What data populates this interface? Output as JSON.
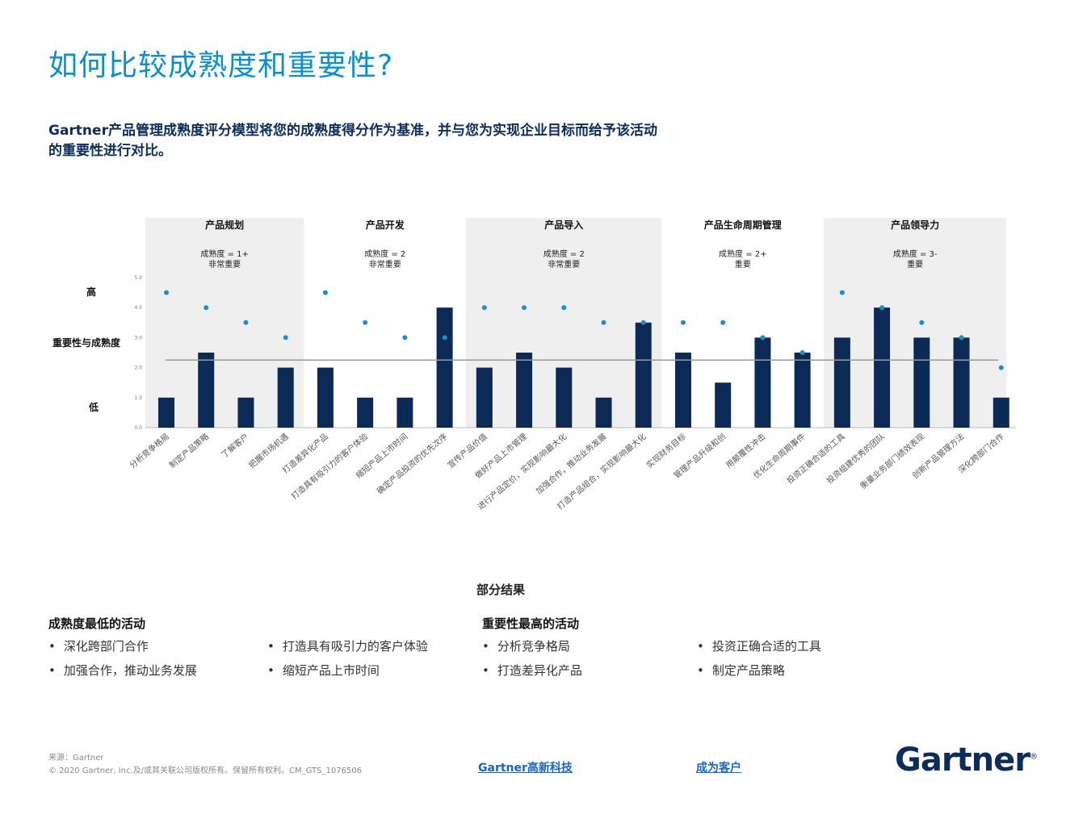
{
  "title": "如何比较成熟度和重要性?",
  "intro": "Gartner产品管理成熟度评分模型将您的成熟度得分作为基准，并与您为实现企业目标而给予该活动的重要性进行对比。",
  "chart_data": {
    "type": "bar",
    "ylabel": "重要性与成熟度",
    "ylim": [
      0,
      5
    ],
    "yticks": [
      "0.0",
      "1.0",
      "2.0",
      "3.0",
      "4.0",
      "5.0"
    ],
    "y_words": {
      "high": "高",
      "low": "低"
    },
    "baseline": 2.25,
    "categories": [
      "分析竞争格局",
      "制定产品策略",
      "了解客户",
      "把握市场机遇",
      "打造差异化产品",
      "打造具有吸引力的客户体验",
      "缩短产品上市时间",
      "确定产品投资的优先次序",
      "宣传产品价值",
      "做好产品上市管理",
      "进行产品定价，实现影响最大化",
      "加强合作，推动业务发展",
      "打造产品组合，实现影响最大化",
      "实现财务目标",
      "管理产品升级和创",
      "用颠覆性冲击",
      "优化生命周期事件",
      "投资正确合适的工具",
      "投资组建优秀的团队",
      "衡量业务部门绩效表现",
      "创新产品管理方法",
      "深化跨部门合作"
    ],
    "series": [
      {
        "role": "bars",
        "values": [
          1,
          2.5,
          1,
          2,
          2,
          1,
          1,
          4,
          2,
          2.5,
          2,
          1,
          3.5,
          2.5,
          1.5,
          3,
          2.5,
          3,
          4,
          3,
          3,
          1
        ]
      },
      {
        "role": "dots",
        "values": [
          4.5,
          4,
          3.5,
          3,
          4.5,
          3.5,
          3,
          3,
          4,
          4,
          4,
          3.5,
          3.5,
          3.5,
          3.5,
          3,
          2.5,
          4.5,
          4,
          3.5,
          3,
          2
        ]
      }
    ],
    "groups": [
      {
        "name": "产品规划",
        "line1": "成熟度 = 1+",
        "line2": "非常重要",
        "start": 0,
        "end": 3,
        "shaded": true
      },
      {
        "name": "产品开发",
        "line1": "成熟度 = 2",
        "line2": "非常重要",
        "start": 4,
        "end": 7,
        "shaded": false
      },
      {
        "name": "产品导入",
        "line1": "成熟度 = 2",
        "line2": "非常重要",
        "start": 8,
        "end": 12,
        "shaded": true
      },
      {
        "name": "产品生命周期管理",
        "line1": "成熟度 = 2+",
        "line2": "重要",
        "start": 13,
        "end": 16,
        "shaded": false
      },
      {
        "name": "产品领导力",
        "line1": "成熟度 = 3-",
        "line2": "重要",
        "start": 17,
        "end": 21,
        "shaded": true
      }
    ],
    "colors": {
      "bar": "#0b2a55",
      "dot": "#1b8fc9",
      "shade": "#efefef",
      "baseline": "#9a9a9a"
    }
  },
  "results": {
    "heading": "部分结果",
    "lowest": {
      "title": "成熟度最低的活动",
      "col1": [
        "深化跨部门合作",
        "加强合作，推动业务发展"
      ],
      "col2": [
        "打造具有吸引力的客户体验",
        "缩短产品上市时间"
      ]
    },
    "highest": {
      "title": "重要性最高的活动",
      "col1": [
        "分析竞争格局",
        "打造差异化产品"
      ],
      "col2": [
        "投资正确合适的工具",
        "制定产品策略"
      ]
    }
  },
  "footer": {
    "source": "来源：Gartner",
    "copyright": "© 2020 Gartner, Inc.及/或其关联公司版权所有。保留所有权利。CM_GTS_1076506",
    "link1": "Gartner高新科技",
    "link2": "成为客户",
    "logo": "Gartner",
    "logo_mark": "®"
  }
}
